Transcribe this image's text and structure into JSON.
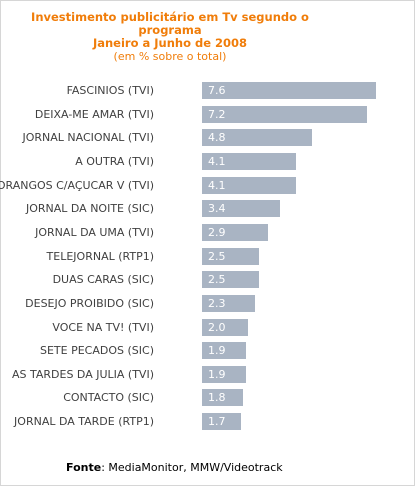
{
  "chart_data": {
    "type": "bar",
    "orientation": "horizontal",
    "title_lines": [
      "Investimento publicitário em Tv segundo o",
      "programa",
      "Janeiro a Junho de 2008"
    ],
    "subtitle": "(em % sobre o total)",
    "categories": [
      "FASCINIOS   (TVI)",
      "DEIXA-ME AMAR   (TVI)",
      "JORNAL NACIONAL   (TVI)",
      "A OUTRA   (TVI)",
      "MORANGOS C/AÇUCAR V   (TVI)",
      "JORNAL DA NOITE   (SIC)",
      "JORNAL DA UMA   (TVI)",
      "TELEJORNAL   (RTP1)",
      "DUAS CARAS   (SIC)",
      "DESEJO PROIBIDO   (SIC)",
      "VOCE NA TV!   (TVI)",
      "SETE PECADOS   (SIC)",
      "AS TARDES DA JULIA   (TVI)",
      "CONTACTO   (SIC)",
      "JORNAL DA TARDE   (RTP1)"
    ],
    "values": [
      7.6,
      7.2,
      4.8,
      4.1,
      4.1,
      3.4,
      2.9,
      2.5,
      2.5,
      2.3,
      2.0,
      1.9,
      1.9,
      1.8,
      1.7
    ],
    "value_labels": [
      "7.6",
      "7.2",
      "4.8",
      "4.1",
      "4.1",
      "3.4",
      "2.9",
      "2.5",
      "2.5",
      "2.3",
      "2.0",
      "1.9",
      "1.9",
      "1.8",
      "1.7"
    ],
    "xlim": [
      0,
      7.6
    ],
    "grid": false,
    "legend": false,
    "bar_color": "#a9b4c3",
    "value_label_color": "#ffffff",
    "title_color": "#f07d0a"
  },
  "source": {
    "label": "Fonte",
    "separator": ": ",
    "text": "MediaMonitor, MMW/Videotrack"
  }
}
